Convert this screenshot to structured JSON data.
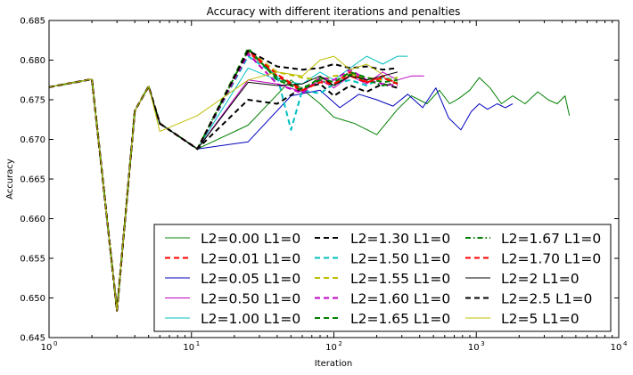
{
  "chart_data": {
    "type": "line",
    "title": "Accuracy with different iterations and penalties",
    "xlabel": "Iteration",
    "ylabel": "Accuracy",
    "xscale": "log",
    "xlim": [
      1,
      10000
    ],
    "ylim": [
      0.645,
      0.685
    ],
    "x_major_ticks": [
      1,
      10,
      100,
      1000,
      10000
    ],
    "x_tick_labels": [
      {
        "base": "10",
        "exp": "0"
      },
      {
        "base": "10",
        "exp": "1"
      },
      {
        "base": "10",
        "exp": "2"
      },
      {
        "base": "10",
        "exp": "3"
      },
      {
        "base": "10",
        "exp": "4"
      }
    ],
    "y_ticks": [
      0.645,
      0.65,
      0.655,
      0.66,
      0.665,
      0.67,
      0.675,
      0.68,
      0.685
    ],
    "y_tick_labels": [
      "0.645",
      "0.650",
      "0.655",
      "0.660",
      "0.665",
      "0.670",
      "0.675",
      "0.680",
      "0.685"
    ],
    "grid": false,
    "legend": {
      "placement": "lower-right",
      "columns": 3
    },
    "shared_prefix": {
      "x": [
        1,
        2,
        3,
        4,
        5,
        6,
        11
      ],
      "y": [
        0.6766,
        0.6776,
        0.6484,
        0.6736,
        0.6767,
        0.672,
        0.6688
      ]
    },
    "series": [
      {
        "name": "L2=0.00 L1=0",
        "color": "#008000",
        "style": "solid",
        "x": [
          11,
          25,
          50,
          80,
          100,
          140,
          200,
          280,
          350,
          450,
          550,
          650,
          760,
          900,
          1050,
          1250,
          1500,
          1800,
          2200,
          2700,
          3200,
          3700,
          4200,
          4500
        ],
        "y": [
          0.6688,
          0.6718,
          0.6775,
          0.6745,
          0.6728,
          0.672,
          0.6706,
          0.6738,
          0.6755,
          0.6745,
          0.6762,
          0.6745,
          0.6752,
          0.6762,
          0.6778,
          0.6765,
          0.6745,
          0.6755,
          0.6745,
          0.676,
          0.675,
          0.6745,
          0.6755,
          0.673
        ]
      },
      {
        "name": "L2=0.01 L1=0",
        "color": "#ff0000",
        "style": "dashed",
        "x": [
          11,
          25,
          40,
          60,
          80,
          100,
          130,
          170,
          220,
          280
        ],
        "y": [
          0.6688,
          0.681,
          0.678,
          0.676,
          0.6775,
          0.677,
          0.6785,
          0.6772,
          0.678,
          0.677
        ]
      },
      {
        "name": "L2=0.05 L1=0",
        "color": "#0000bf",
        "style": "solid",
        "x": [
          11,
          25,
          50,
          80,
          110,
          150,
          200,
          260,
          330,
          420,
          520,
          640,
          780,
          920,
          1050,
          1200,
          1400,
          1600,
          1800
        ],
        "y": [
          0.6688,
          0.6697,
          0.6755,
          0.6762,
          0.674,
          0.6757,
          0.675,
          0.6742,
          0.6757,
          0.674,
          0.6765,
          0.6727,
          0.6712,
          0.6735,
          0.6745,
          0.6738,
          0.6745,
          0.674,
          0.6745
        ]
      },
      {
        "name": "L2=0.50 L1=0",
        "color": "#bf00bf",
        "style": "solid",
        "x": [
          11,
          25,
          40,
          60,
          80,
          100,
          130,
          170,
          220,
          280,
          350,
          430
        ],
        "y": [
          0.6688,
          0.6775,
          0.677,
          0.676,
          0.6775,
          0.6765,
          0.678,
          0.677,
          0.6785,
          0.6775,
          0.678,
          0.678
        ]
      },
      {
        "name": "L2=1.00 L1=0",
        "color": "#00bfbf",
        "style": "solid",
        "x": [
          11,
          25,
          40,
          60,
          80,
          100,
          130,
          170,
          220,
          280,
          330
        ],
        "y": [
          0.6688,
          0.679,
          0.6775,
          0.677,
          0.6785,
          0.6775,
          0.679,
          0.6805,
          0.6795,
          0.6805,
          0.6805
        ]
      },
      {
        "name": "L2=1.30 L1=0",
        "color": "#000000",
        "style": "dashed",
        "x": [
          11,
          25,
          40,
          60,
          80,
          100,
          130,
          170,
          220,
          280
        ],
        "y": [
          0.6688,
          0.675,
          0.6745,
          0.6765,
          0.677,
          0.6755,
          0.6768,
          0.676,
          0.677,
          0.6765
        ]
      },
      {
        "name": "L2=1.50 L1=0",
        "color": "#00bfbf",
        "style": "dashed",
        "x": [
          11,
          25,
          40,
          50,
          60,
          80,
          100,
          130,
          170,
          220,
          280
        ],
        "y": [
          0.6688,
          0.6805,
          0.678,
          0.6712,
          0.6762,
          0.6758,
          0.677,
          0.6775,
          0.6768,
          0.6778,
          0.6775
        ]
      },
      {
        "name": "L2=1.55 L1=0",
        "color": "#bfbf00",
        "style": "dashed",
        "x": [
          11,
          25,
          40,
          60,
          80,
          100,
          130,
          170,
          220,
          280
        ],
        "y": [
          0.6688,
          0.6812,
          0.6785,
          0.6778,
          0.6775,
          0.678,
          0.6782,
          0.6778,
          0.6775,
          0.6778
        ]
      },
      {
        "name": "L2=1.60 L1=0",
        "color": "#bf00bf",
        "style": "dashed",
        "x": [
          11,
          25,
          40,
          60,
          80,
          100,
          130,
          170,
          220,
          280
        ],
        "y": [
          0.6688,
          0.6808,
          0.677,
          0.6758,
          0.6778,
          0.6775,
          0.6788,
          0.6775,
          0.677,
          0.6768
        ]
      },
      {
        "name": "L2=1.65 L1=0",
        "color": "#008000",
        "style": "dashed",
        "x": [
          11,
          25,
          40,
          60,
          80,
          100,
          130,
          170,
          220,
          280
        ],
        "y": [
          0.6688,
          0.6815,
          0.6775,
          0.6762,
          0.6778,
          0.6772,
          0.6785,
          0.6778,
          0.6772,
          0.6775
        ]
      },
      {
        "name": "L2=1.67 L1=0",
        "color": "#008000",
        "style": "dashdot",
        "x": [
          11,
          25,
          40,
          60,
          80,
          100,
          130,
          170,
          220,
          280
        ],
        "y": [
          0.6688,
          0.6812,
          0.6778,
          0.6765,
          0.6775,
          0.6768,
          0.6782,
          0.6775,
          0.6768,
          0.6772
        ]
      },
      {
        "name": "L2=1.70 L1=0",
        "color": "#ff0000",
        "style": "dashed",
        "x": [
          11,
          25,
          40,
          60,
          80,
          100,
          130,
          170,
          220,
          280
        ],
        "y": [
          0.6688,
          0.6812,
          0.6782,
          0.6762,
          0.6772,
          0.677,
          0.678,
          0.6772,
          0.6778,
          0.677
        ]
      },
      {
        "name": "L2=2 L1=0",
        "color": "#000000",
        "style": "solid",
        "x": [
          11,
          25,
          40,
          60,
          80,
          100,
          130,
          170,
          220,
          280
        ],
        "y": [
          0.6688,
          0.6772,
          0.6768,
          0.677,
          0.678,
          0.6768,
          0.678,
          0.6775,
          0.678,
          0.6785
        ]
      },
      {
        "name": "L2=2.5 L1=0",
        "color": "#000000",
        "style": "dashed",
        "x": [
          11,
          25,
          40,
          60,
          80,
          100,
          130,
          170,
          220,
          280
        ],
        "y": [
          0.6688,
          0.6812,
          0.6792,
          0.6788,
          0.679,
          0.6795,
          0.679,
          0.6792,
          0.6788,
          0.679
        ]
      },
      {
        "name": "L2=5 L1=0",
        "color": "#bfbf00",
        "style": "solid",
        "x": [
          6,
          11,
          25,
          40,
          60,
          80,
          100,
          130,
          170,
          220
        ],
        "y": [
          0.671,
          0.673,
          0.6775,
          0.6785,
          0.678,
          0.68,
          0.6805,
          0.6788,
          0.6795,
          0.6782
        ]
      }
    ]
  }
}
